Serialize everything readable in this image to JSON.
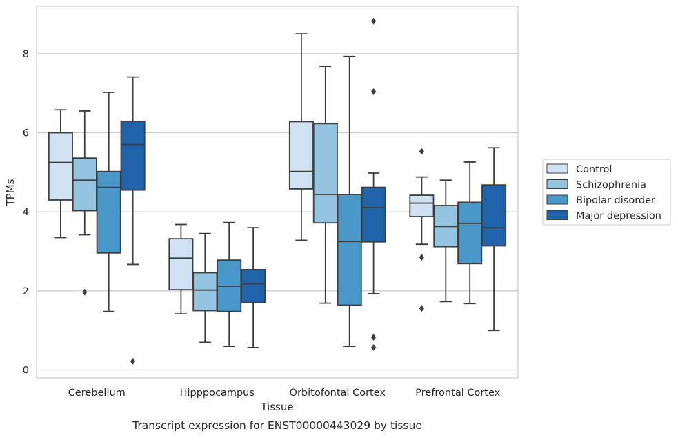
{
  "chart_data": {
    "type": "box",
    "title": "",
    "xlabel": "Tissue",
    "ylabel": "TPMs",
    "caption": "Transcript expression for ENST00000443029 by tissue",
    "ylim": [
      -0.2,
      9.2
    ],
    "yticks": [
      0,
      2,
      4,
      6,
      8
    ],
    "grid": "horizontal",
    "legend_position": "right",
    "categories": [
      "Cerebellum",
      "Hipppocampus",
      "Orbitofontal Cortex",
      "Prefrontal Cortex"
    ],
    "series": [
      {
        "name": "Control",
        "color": "#d0e1f2",
        "boxes": [
          {
            "whislo": 3.35,
            "q1": 4.3,
            "med": 5.25,
            "q3": 6.0,
            "whishi": 6.58,
            "fliers": []
          },
          {
            "whislo": 1.42,
            "q1": 2.03,
            "med": 2.83,
            "q3": 3.32,
            "whishi": 3.68,
            "fliers": []
          },
          {
            "whislo": 3.28,
            "q1": 4.58,
            "med": 5.02,
            "q3": 6.28,
            "whishi": 8.5,
            "fliers": []
          },
          {
            "whislo": 3.18,
            "q1": 3.88,
            "med": 4.22,
            "q3": 4.42,
            "whishi": 4.88,
            "fliers": [
              5.53,
              2.85,
              1.56
            ]
          }
        ]
      },
      {
        "name": "Schizophrenia",
        "color": "#94c4df",
        "boxes": [
          {
            "whislo": 3.42,
            "q1": 4.03,
            "med": 4.8,
            "q3": 5.36,
            "whishi": 6.55,
            "fliers": [
              1.97
            ]
          },
          {
            "whislo": 0.7,
            "q1": 1.5,
            "med": 2.02,
            "q3": 2.46,
            "whishi": 3.45,
            "fliers": []
          },
          {
            "whislo": 1.69,
            "q1": 3.72,
            "med": 4.44,
            "q3": 6.23,
            "whishi": 7.68,
            "fliers": []
          },
          {
            "whislo": 1.73,
            "q1": 3.12,
            "med": 3.63,
            "q3": 4.16,
            "whishi": 4.8,
            "fliers": []
          }
        ]
      },
      {
        "name": "Bipolar disorder",
        "color": "#4a98c9",
        "boxes": [
          {
            "whislo": 1.48,
            "q1": 2.96,
            "med": 4.62,
            "q3": 5.02,
            "whishi": 7.02,
            "fliers": []
          },
          {
            "whislo": 0.6,
            "q1": 1.48,
            "med": 2.12,
            "q3": 2.78,
            "whishi": 3.73,
            "fliers": []
          },
          {
            "whislo": 0.6,
            "q1": 1.64,
            "med": 3.25,
            "q3": 4.44,
            "whishi": 7.93,
            "fliers": []
          },
          {
            "whislo": 1.68,
            "q1": 2.69,
            "med": 3.71,
            "q3": 4.24,
            "whishi": 5.26,
            "fliers": []
          }
        ]
      },
      {
        "name": "Major depression",
        "color": "#2163aa",
        "boxes": [
          {
            "whislo": 2.67,
            "q1": 4.55,
            "med": 5.7,
            "q3": 6.29,
            "whishi": 7.41,
            "fliers": [
              0.22
            ]
          },
          {
            "whislo": 0.57,
            "q1": 1.7,
            "med": 2.18,
            "q3": 2.54,
            "whishi": 3.6,
            "fliers": []
          },
          {
            "whislo": 1.93,
            "q1": 3.24,
            "med": 4.11,
            "q3": 4.62,
            "whishi": 4.98,
            "fliers": [
              8.82,
              7.04,
              0.83,
              0.57
            ]
          },
          {
            "whislo": 1.0,
            "q1": 3.14,
            "med": 3.6,
            "q3": 4.68,
            "whishi": 5.62,
            "fliers": []
          }
        ]
      }
    ]
  }
}
